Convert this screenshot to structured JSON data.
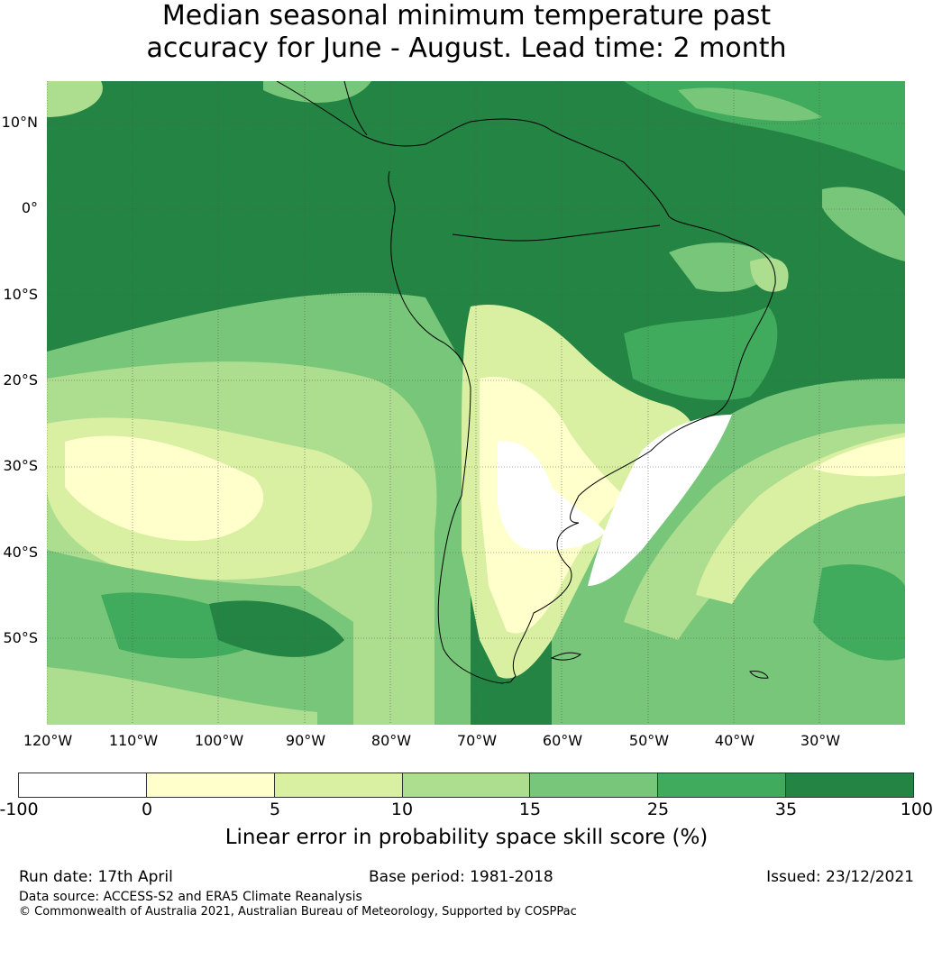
{
  "title": {
    "line1": "Median seasonal minimum temperature past",
    "line2": "accuracy for June - August. Lead time: 2 month"
  },
  "map": {
    "lat_labels": [
      "10°N",
      "0°",
      "10°S",
      "20°S",
      "30°S",
      "40°S",
      "50°S"
    ],
    "lon_labels": [
      "120°W",
      "110°W",
      "100°W",
      "90°W",
      "80°W",
      "70°W",
      "60°W",
      "50°W",
      "40°W",
      "30°W"
    ],
    "colors": {
      "c_neg": "#ffffff",
      "c_0_5": "#ffffcc",
      "c_5_10": "#d9f0a3",
      "c_10_15": "#addd8e",
      "c_15_25": "#78c679",
      "c_25_35": "#41ab5d",
      "c_35_100": "#238443",
      "coast": "#000000",
      "grid": "#555555"
    }
  },
  "colorbar": {
    "ticks": [
      "-100",
      "0",
      "5",
      "10",
      "15",
      "25",
      "35",
      "100"
    ],
    "label": "Linear error in probability space skill score (%)"
  },
  "footer": {
    "run_date": "Run date: 17th April",
    "base_period": "Base period: 1981-2018",
    "issued": "Issued: 23/12/2021",
    "data_source": "Data source: ACCESS-S2 and ERA5 Climate Reanalysis",
    "copyright": "© Commonwealth of Australia 2021, Australian Bureau of Meteorology, Supported by COSPPac"
  }
}
